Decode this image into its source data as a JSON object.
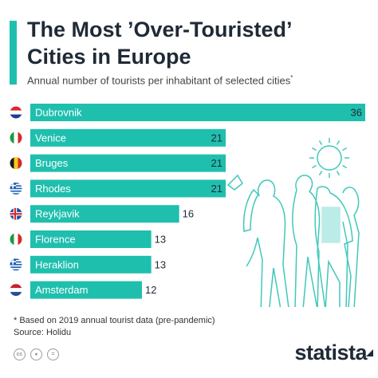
{
  "header": {
    "title_line1": "The Most ’Over-Touristed’",
    "title_line2": "Cities in Europe",
    "subtitle": "Annual number of tourists per inhabitant of selected cities",
    "subtitle_mark": "*"
  },
  "chart_data": {
    "type": "bar",
    "orientation": "horizontal",
    "categories": [
      "Dubrovnik",
      "Venice",
      "Bruges",
      "Rhodes",
      "Reykjavik",
      "Florence",
      "Heraklion",
      "Amsterdam"
    ],
    "values": [
      36,
      21,
      21,
      21,
      16,
      13,
      13,
      12
    ],
    "flags": [
      "croatia-flag",
      "italy-flag",
      "belgium-flag",
      "greece-flag",
      "iceland-flag",
      "italy-flag",
      "greece-flag",
      "netherlands-flag"
    ],
    "xlim": [
      0,
      36
    ],
    "bar_color": "#1fbfae"
  },
  "footer": {
    "note": "* Based on 2019 annual tourist data (pre-pandemic)",
    "source": "Source: Holidu",
    "icons": [
      "cc-icon",
      "person-icon",
      "equals-icon"
    ],
    "brand": "statista"
  }
}
